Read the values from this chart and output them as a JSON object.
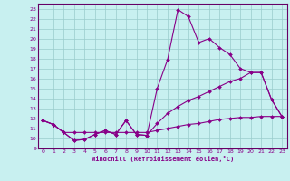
{
  "xlabel": "Windchill (Refroidissement éolien,°C)",
  "background_color": "#c8f0f0",
  "grid_color": "#99cccc",
  "line_color": "#880088",
  "spine_color": "#660066",
  "xlim": [
    -0.5,
    23.5
  ],
  "ylim": [
    9,
    23.5
  ],
  "xticks": [
    0,
    1,
    2,
    3,
    4,
    5,
    6,
    7,
    8,
    9,
    10,
    11,
    12,
    13,
    14,
    15,
    16,
    17,
    18,
    19,
    20,
    21,
    22,
    23
  ],
  "yticks": [
    9,
    10,
    11,
    12,
    13,
    14,
    15,
    16,
    17,
    18,
    19,
    20,
    21,
    22,
    23
  ],
  "series1_x": [
    0,
    1,
    2,
    3,
    4,
    5,
    6,
    7,
    8,
    9,
    10,
    11,
    12,
    13,
    14,
    15,
    16,
    17,
    18,
    19,
    20,
    21,
    22,
    23
  ],
  "series1_y": [
    11.8,
    11.4,
    10.6,
    9.8,
    9.9,
    10.4,
    10.8,
    10.4,
    11.8,
    10.4,
    10.3,
    15.0,
    17.9,
    22.9,
    22.2,
    19.6,
    20.0,
    19.1,
    18.4,
    17.0,
    16.6,
    16.6,
    13.9,
    12.2
  ],
  "series2_x": [
    0,
    1,
    2,
    3,
    4,
    5,
    6,
    7,
    8,
    9,
    10,
    11,
    12,
    13,
    14,
    15,
    16,
    17,
    18,
    19,
    20,
    21,
    22,
    23
  ],
  "series2_y": [
    11.8,
    11.4,
    10.6,
    9.8,
    9.9,
    10.4,
    10.8,
    10.4,
    11.8,
    10.4,
    10.3,
    11.5,
    12.5,
    13.2,
    13.8,
    14.2,
    14.7,
    15.2,
    15.7,
    16.0,
    16.6,
    16.6,
    13.9,
    12.2
  ],
  "series3_x": [
    0,
    1,
    2,
    3,
    4,
    5,
    6,
    7,
    8,
    9,
    10,
    11,
    12,
    13,
    14,
    15,
    16,
    17,
    18,
    19,
    20,
    21,
    22,
    23
  ],
  "series3_y": [
    11.8,
    11.4,
    10.6,
    10.6,
    10.6,
    10.6,
    10.6,
    10.6,
    10.6,
    10.6,
    10.6,
    10.8,
    11.0,
    11.2,
    11.4,
    11.5,
    11.7,
    11.9,
    12.0,
    12.1,
    12.1,
    12.2,
    12.2,
    12.2
  ]
}
